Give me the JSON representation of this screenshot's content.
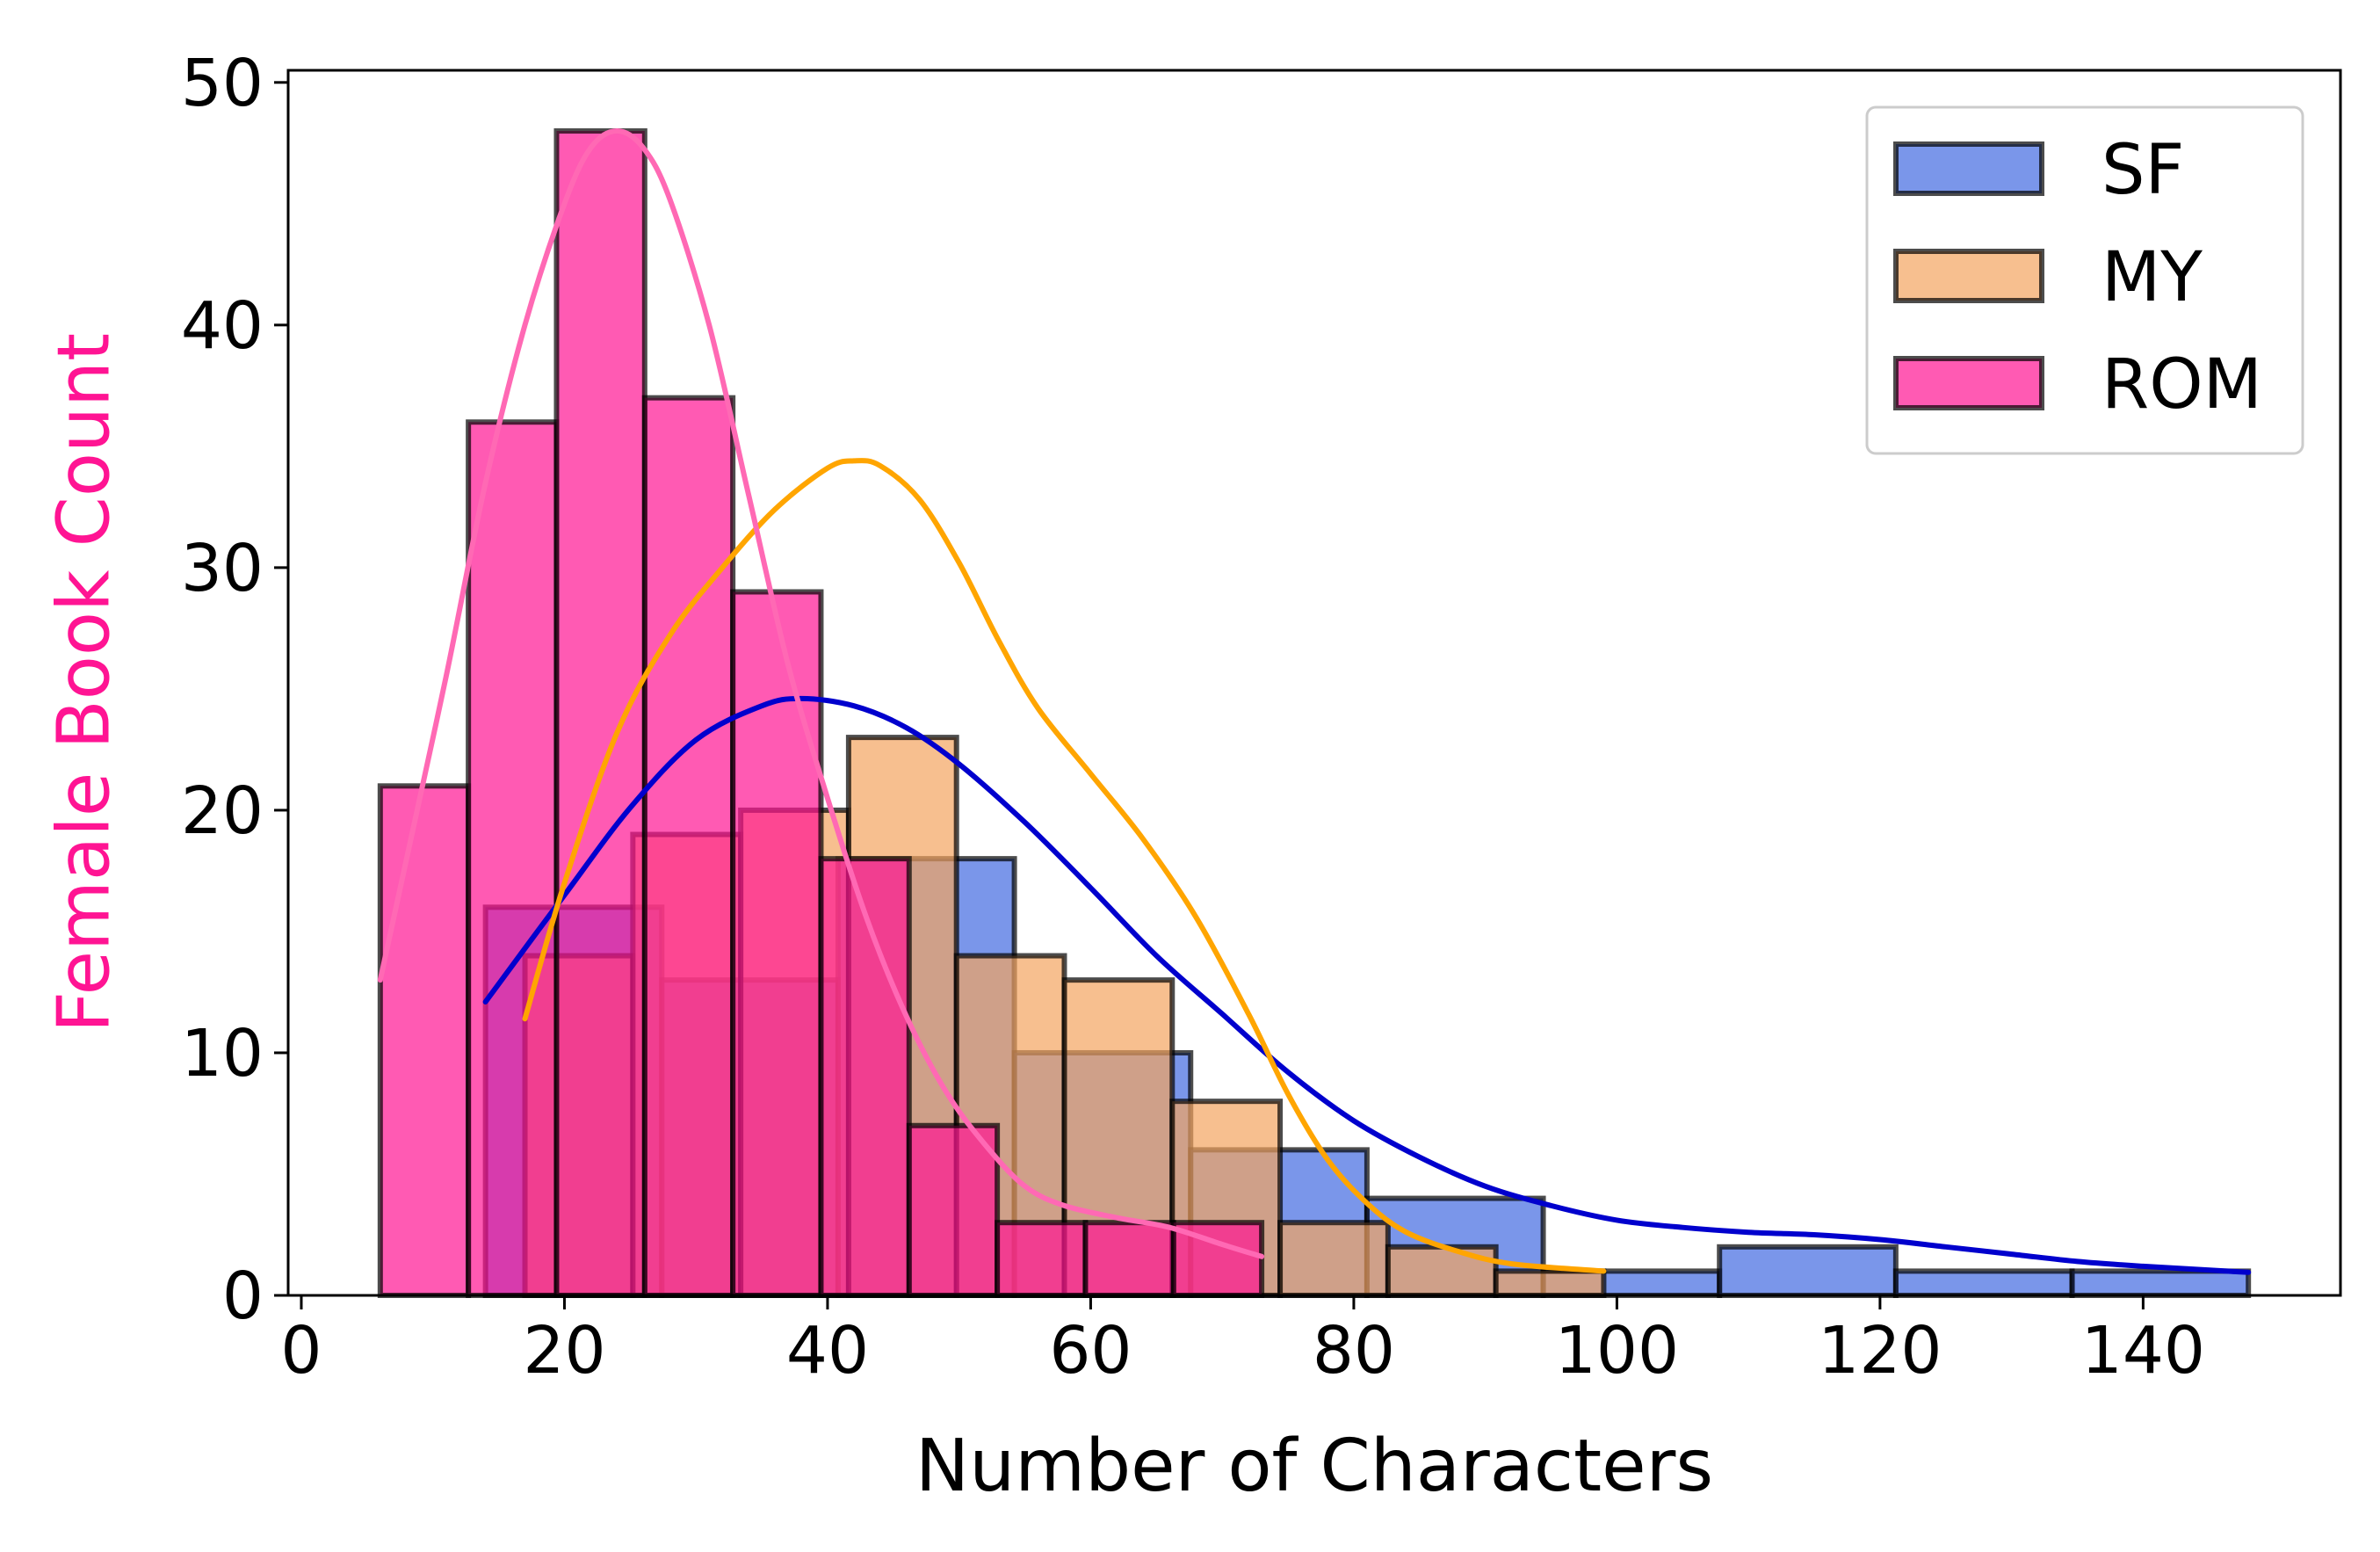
{
  "chart_data": {
    "type": "bar",
    "subtype": "overlapping-histogram-with-kde",
    "title": "",
    "xlabel": "Number of Characters",
    "ylabel": "Female Book Count",
    "ylabel_color": "#ff1493",
    "xlim": [
      -1,
      155
    ],
    "ylim": [
      0,
      50.5
    ],
    "xticks": [
      0,
      20,
      40,
      60,
      80,
      100,
      120,
      140
    ],
    "yticks": [
      0,
      10,
      20,
      30,
      40,
      50
    ],
    "legend": {
      "position": "top-right",
      "entries": [
        {
          "key": "sf",
          "label": "SF"
        },
        {
          "key": "my",
          "label": "MY"
        },
        {
          "key": "rom",
          "label": "ROM"
        }
      ]
    },
    "series": [
      {
        "key": "sf",
        "name": "SF",
        "color": "#4169e1",
        "line_color": "#0000cd",
        "fill_opacity": 0.7,
        "bins": [
          {
            "x0": 14,
            "x1": 27.4,
            "count": 16
          },
          {
            "x0": 27.4,
            "x1": 40.8,
            "count": 13
          },
          {
            "x0": 40.8,
            "x1": 54.2,
            "count": 18
          },
          {
            "x0": 54.2,
            "x1": 67.6,
            "count": 10
          },
          {
            "x0": 67.6,
            "x1": 81.0,
            "count": 6
          },
          {
            "x0": 81.0,
            "x1": 94.4,
            "count": 4
          },
          {
            "x0": 94.4,
            "x1": 107.8,
            "count": 1
          },
          {
            "x0": 107.8,
            "x1": 121.2,
            "count": 2
          },
          {
            "x0": 121.2,
            "x1": 134.6,
            "count": 1
          },
          {
            "x0": 134.6,
            "x1": 148,
            "count": 1
          }
        ],
        "kde": [
          [
            14,
            12.1
          ],
          [
            20,
            16.5
          ],
          [
            25,
            20.1
          ],
          [
            30,
            22.9
          ],
          [
            35,
            24.3
          ],
          [
            38,
            24.6
          ],
          [
            42,
            24.3
          ],
          [
            46,
            23.4
          ],
          [
            50,
            21.9
          ],
          [
            55,
            19.5
          ],
          [
            60,
            16.8
          ],
          [
            65,
            14.0
          ],
          [
            70,
            11.6
          ],
          [
            75,
            9.2
          ],
          [
            80,
            7.2
          ],
          [
            85,
            5.7
          ],
          [
            90,
            4.5
          ],
          [
            95,
            3.7
          ],
          [
            100,
            3.1
          ],
          [
            105,
            2.8
          ],
          [
            110,
            2.6
          ],
          [
            115,
            2.5
          ],
          [
            120,
            2.3
          ],
          [
            125,
            2.0
          ],
          [
            130,
            1.7
          ],
          [
            135,
            1.4
          ],
          [
            140,
            1.2
          ],
          [
            148,
            0.95
          ]
        ]
      },
      {
        "key": "my",
        "name": "MY",
        "color": "#f4a460",
        "line_color": "#ffa500",
        "fill_opacity": 0.7,
        "bins": [
          {
            "x0": 17,
            "x1": 25.2,
            "count": 14
          },
          {
            "x0": 25.2,
            "x1": 33.4,
            "count": 19
          },
          {
            "x0": 33.4,
            "x1": 41.6,
            "count": 20
          },
          {
            "x0": 41.6,
            "x1": 49.8,
            "count": 23
          },
          {
            "x0": 49.8,
            "x1": 58.0,
            "count": 14
          },
          {
            "x0": 58.0,
            "x1": 66.2,
            "count": 13
          },
          {
            "x0": 66.2,
            "x1": 74.4,
            "count": 8
          },
          {
            "x0": 74.4,
            "x1": 82.6,
            "count": 3
          },
          {
            "x0": 82.6,
            "x1": 90.8,
            "count": 2
          },
          {
            "x0": 90.8,
            "x1": 99,
            "count": 1
          }
        ],
        "kde": [
          [
            17,
            11.4
          ],
          [
            20,
            17.0
          ],
          [
            24,
            23.2
          ],
          [
            28,
            27.2
          ],
          [
            32,
            30.0
          ],
          [
            36,
            32.4
          ],
          [
            40,
            34.1
          ],
          [
            42,
            34.4
          ],
          [
            44,
            34.2
          ],
          [
            47,
            32.8
          ],
          [
            50,
            30.2
          ],
          [
            53,
            27.0
          ],
          [
            56,
            24.2
          ],
          [
            60,
            21.5
          ],
          [
            64,
            18.8
          ],
          [
            68,
            15.6
          ],
          [
            72,
            11.6
          ],
          [
            75,
            8.3
          ],
          [
            78,
            5.6
          ],
          [
            81,
            3.8
          ],
          [
            84,
            2.6
          ],
          [
            88,
            1.8
          ],
          [
            92,
            1.3
          ],
          [
            99,
            1.0
          ]
        ]
      },
      {
        "key": "rom",
        "name": "ROM",
        "color": "#ff1493",
        "line_color": "#ff69b4",
        "fill_opacity": 0.7,
        "bins": [
          {
            "x0": 6,
            "x1": 12.7,
            "count": 21
          },
          {
            "x0": 12.7,
            "x1": 19.4,
            "count": 36
          },
          {
            "x0": 19.4,
            "x1": 26.1,
            "count": 48
          },
          {
            "x0": 26.1,
            "x1": 32.8,
            "count": 37
          },
          {
            "x0": 32.8,
            "x1": 39.5,
            "count": 29
          },
          {
            "x0": 39.5,
            "x1": 46.2,
            "count": 18
          },
          {
            "x0": 46.2,
            "x1": 52.9,
            "count": 7
          },
          {
            "x0": 52.9,
            "x1": 59.6,
            "count": 3
          },
          {
            "x0": 59.6,
            "x1": 66.3,
            "count": 3
          },
          {
            "x0": 66.3,
            "x1": 73,
            "count": 3
          }
        ],
        "kde": [
          [
            6,
            13.0
          ],
          [
            8,
            18.0
          ],
          [
            11,
            25.5
          ],
          [
            14,
            33.5
          ],
          [
            17,
            40.0
          ],
          [
            20,
            45.0
          ],
          [
            22,
            47.3
          ],
          [
            24,
            48.0
          ],
          [
            26,
            47.3
          ],
          [
            28,
            45.2
          ],
          [
            31,
            40.0
          ],
          [
            34,
            33.0
          ],
          [
            37,
            26.0
          ],
          [
            40,
            20.5
          ],
          [
            43,
            15.5
          ],
          [
            46,
            11.5
          ],
          [
            49,
            8.4
          ],
          [
            52,
            6.2
          ],
          [
            55,
            4.5
          ],
          [
            58,
            3.7
          ],
          [
            62,
            3.2
          ],
          [
            66,
            2.8
          ],
          [
            70,
            2.1
          ],
          [
            73,
            1.6
          ]
        ]
      }
    ]
  }
}
